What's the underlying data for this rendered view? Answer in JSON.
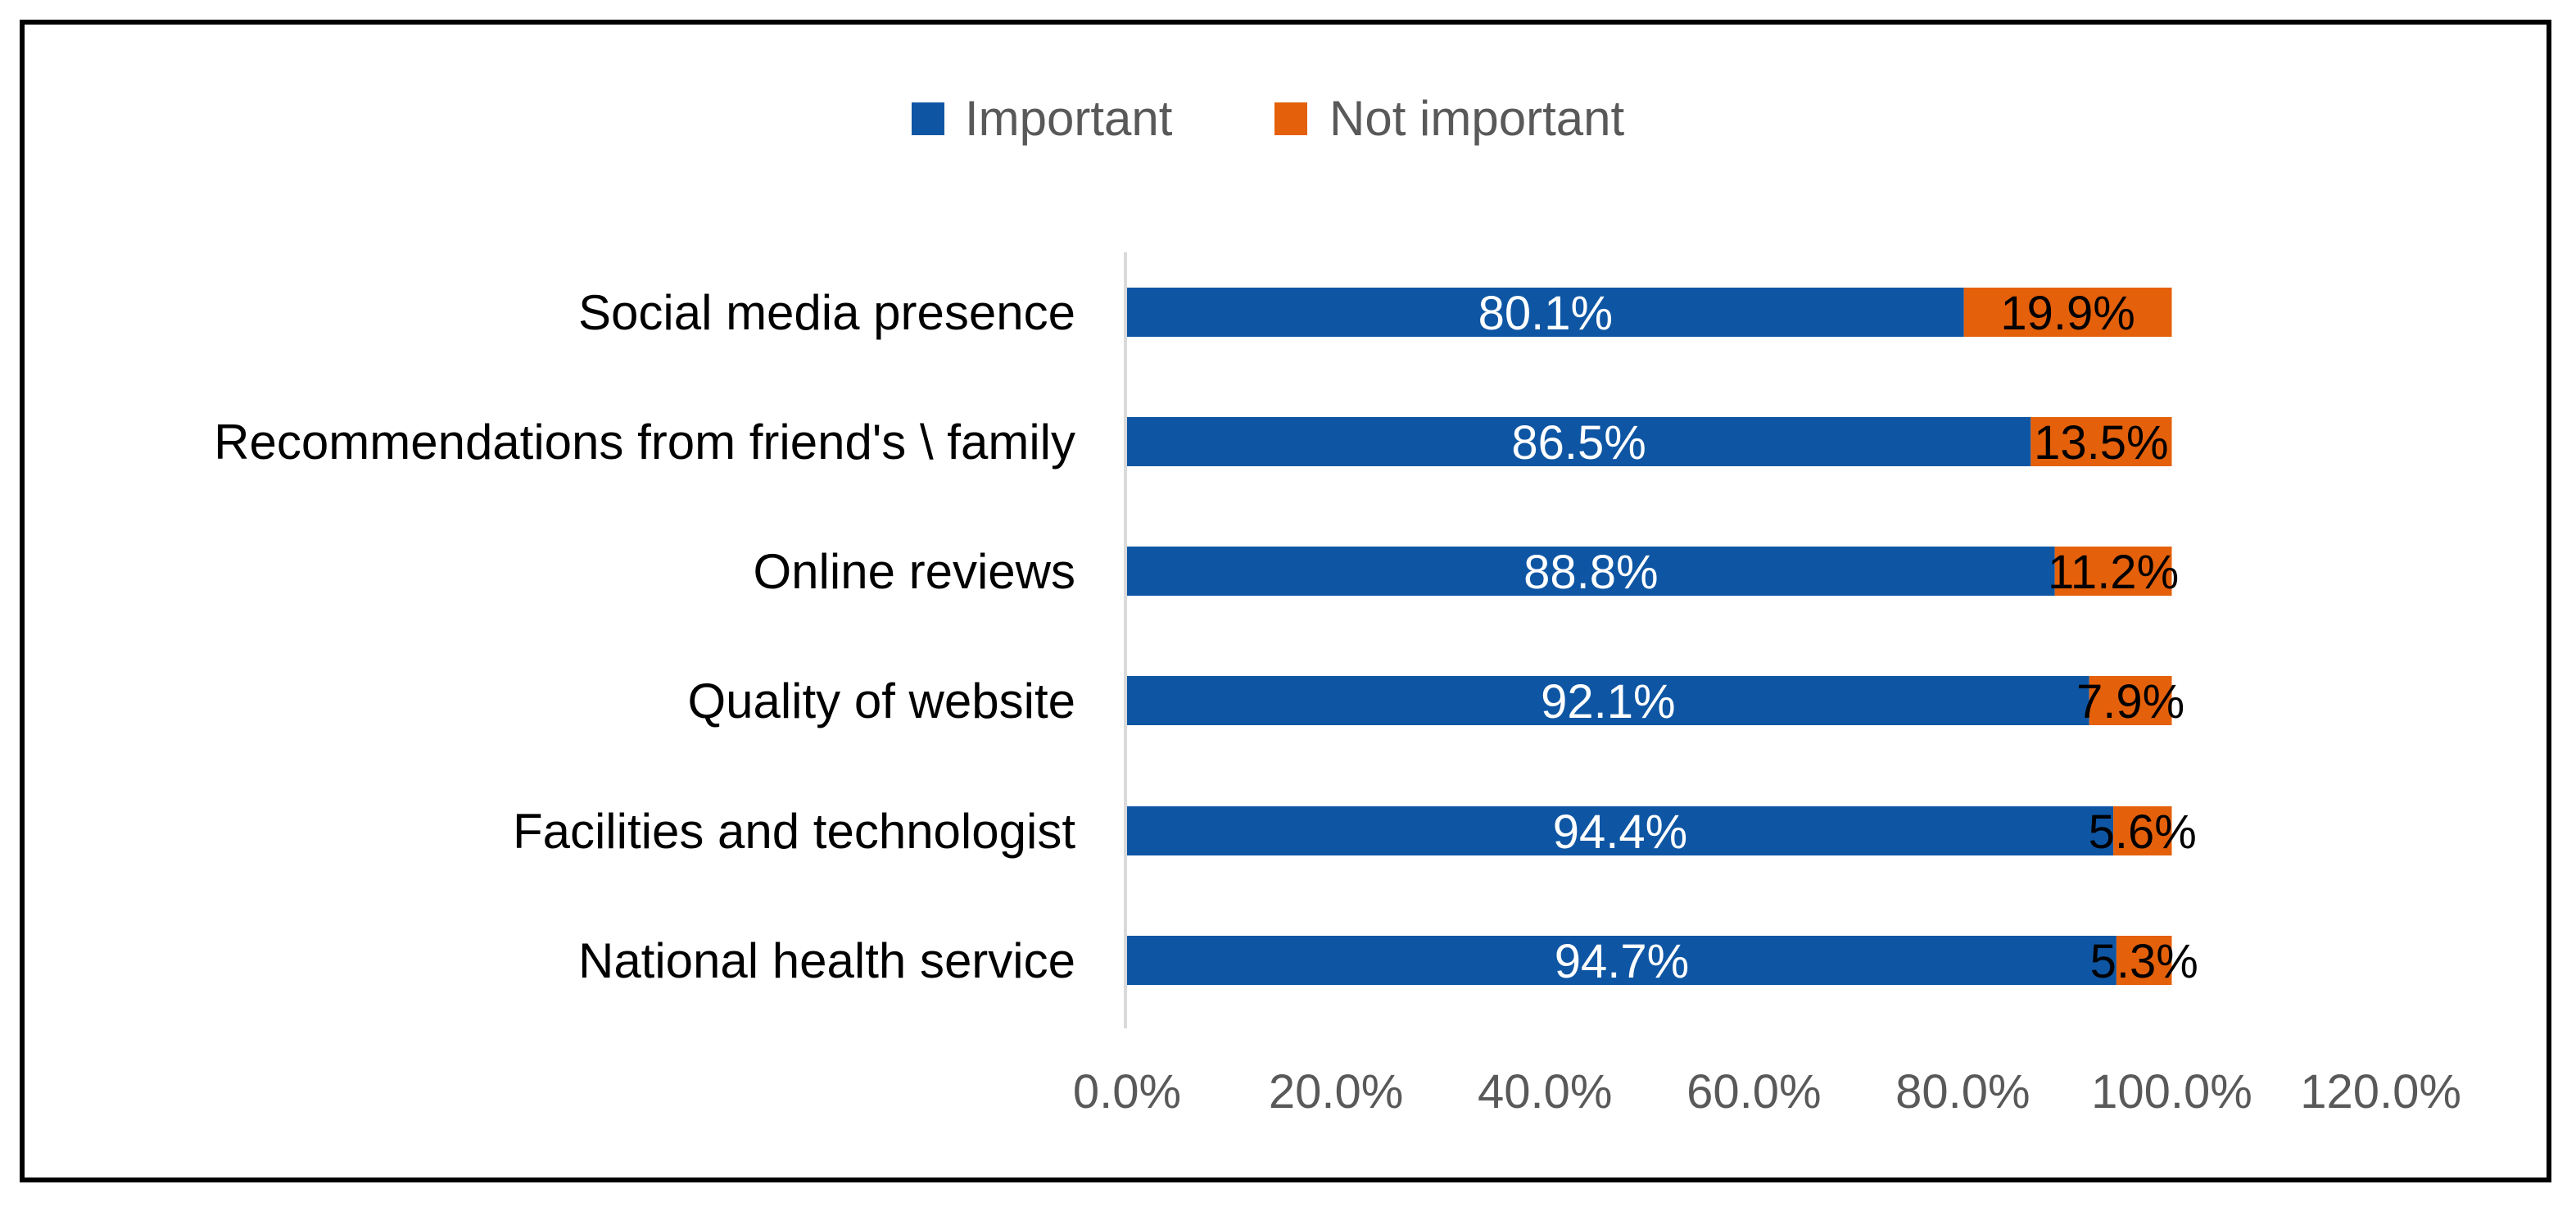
{
  "chart_data": {
    "type": "bar",
    "orientation": "horizontal",
    "stacked": true,
    "title": "",
    "xlabel": "",
    "ylabel": "",
    "categories": [
      "Social media presence",
      "Recommendations from friend's \\ family",
      "Online reviews",
      "Quality of website",
      "Facilities and technologist",
      "National health service"
    ],
    "series": [
      {
        "name": "Important",
        "color": "#0E56A4",
        "values": [
          80.1,
          86.5,
          88.8,
          92.1,
          94.4,
          94.7
        ],
        "labels": [
          "80.1%",
          "86.5%",
          "88.8%",
          "92.1%",
          "94.4%",
          "94.7%"
        ],
        "label_color": "#FFFFFF"
      },
      {
        "name": "Not important",
        "color": "#E4600A",
        "values": [
          19.9,
          13.5,
          11.2,
          7.9,
          5.6,
          5.3
        ],
        "labels": [
          "19.9%",
          "13.5%",
          "11.2%",
          "7.9%",
          "5.6%",
          "5.3%"
        ],
        "label_color": "#000000"
      }
    ],
    "xlim": [
      0,
      120
    ],
    "xticks": [
      0,
      20,
      40,
      60,
      80,
      100,
      120
    ],
    "xtick_labels": [
      "0.0%",
      "20.0%",
      "40.0%",
      "60.0%",
      "80.0%",
      "100.0%",
      "120.0%"
    ],
    "grid": false,
    "legend_position": "top-center"
  }
}
